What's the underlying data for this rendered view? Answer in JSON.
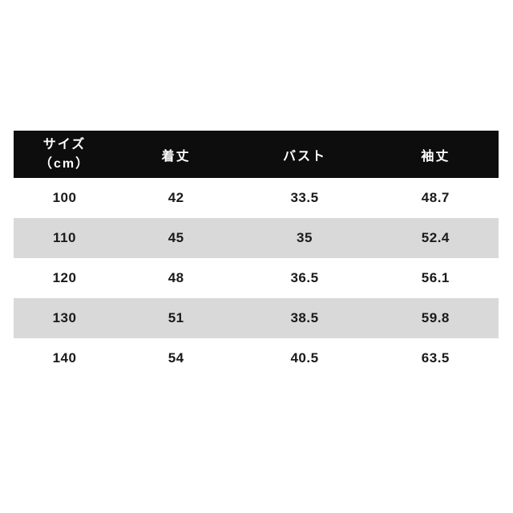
{
  "table": {
    "header": {
      "size_line1": "サイズ",
      "size_line2": "（cm）",
      "length": "着丈",
      "bust": "バスト",
      "sleeve": "袖丈",
      "bg_color": "#0d0d0d",
      "text_color": "#ffffff"
    },
    "stripe_color": "#d9d9d9",
    "rows": [
      {
        "size": "100",
        "length": "42",
        "bust": "33.5",
        "sleeve": "48.7"
      },
      {
        "size": "110",
        "length": "45",
        "bust": "35",
        "sleeve": "52.4"
      },
      {
        "size": "120",
        "length": "48",
        "bust": "36.5",
        "sleeve": "56.1"
      },
      {
        "size": "130",
        "length": "51",
        "bust": "38.5",
        "sleeve": "59.8"
      },
      {
        "size": "140",
        "length": "54",
        "bust": "40.5",
        "sleeve": "63.5"
      }
    ]
  },
  "chart_data": {
    "type": "table",
    "title": "",
    "columns": [
      "サイズ（cm）",
      "着丈",
      "バスト",
      "袖丈"
    ],
    "rows": [
      [
        "100",
        "42",
        "33.5",
        "48.7"
      ],
      [
        "110",
        "45",
        "35",
        "52.4"
      ],
      [
        "120",
        "48",
        "36.5",
        "56.1"
      ],
      [
        "130",
        "51",
        "38.5",
        "59.8"
      ],
      [
        "140",
        "54",
        "40.5",
        "63.5"
      ]
    ],
    "layout_hints": {
      "header_background": "#0d0d0d",
      "header_text_color": "#ffffff",
      "zebra_stripe_color": "#d9d9d9",
      "row_backgrounds": [
        "#ffffff",
        "#d9d9d9",
        "#ffffff",
        "#d9d9d9",
        "#ffffff"
      ]
    }
  }
}
